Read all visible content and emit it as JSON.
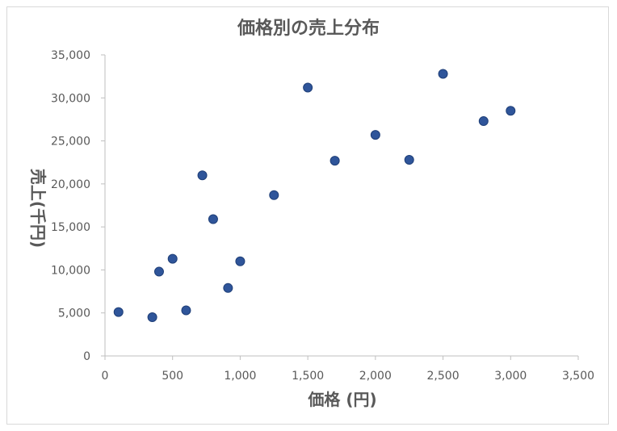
{
  "chart_data": {
    "type": "scatter",
    "title": "価格別の売上分布",
    "xlabel": "価格 (円)",
    "ylabel": "売上(千円)",
    "xlim": [
      0,
      3500
    ],
    "ylim": [
      0,
      35000
    ],
    "x_ticks": [
      0,
      500,
      1000,
      1500,
      2000,
      2500,
      3000,
      3500
    ],
    "y_ticks": [
      0,
      5000,
      10000,
      15000,
      20000,
      25000,
      30000,
      35000
    ],
    "x_tick_labels": [
      "0",
      "500",
      "1,000",
      "1,500",
      "2,000",
      "2,500",
      "3,000",
      "3,500"
    ],
    "y_tick_labels": [
      "0",
      "5,000",
      "10,000",
      "15,000",
      "20,000",
      "25,000",
      "30,000",
      "35,000"
    ],
    "grid": false,
    "legend": "none",
    "marker_color": "#2f559a",
    "points": [
      {
        "x": 100,
        "y": 5100
      },
      {
        "x": 350,
        "y": 4500
      },
      {
        "x": 400,
        "y": 9800
      },
      {
        "x": 500,
        "y": 11300
      },
      {
        "x": 600,
        "y": 5300
      },
      {
        "x": 720,
        "y": 21000
      },
      {
        "x": 800,
        "y": 15900
      },
      {
        "x": 910,
        "y": 7900
      },
      {
        "x": 1000,
        "y": 11000
      },
      {
        "x": 1250,
        "y": 18700
      },
      {
        "x": 1500,
        "y": 31200
      },
      {
        "x": 1700,
        "y": 22700
      },
      {
        "x": 2000,
        "y": 25700
      },
      {
        "x": 2250,
        "y": 22800
      },
      {
        "x": 2500,
        "y": 32800
      },
      {
        "x": 2800,
        "y": 27300
      },
      {
        "x": 3000,
        "y": 28500
      }
    ]
  }
}
